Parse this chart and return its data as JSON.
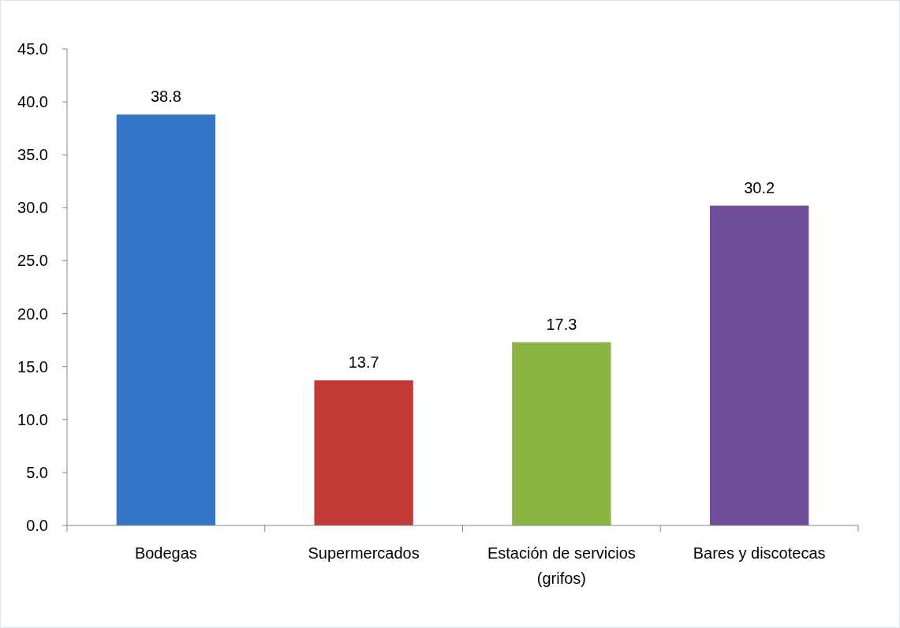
{
  "chart_data": {
    "type": "bar",
    "categories": [
      "Bodegas",
      "Supermercados",
      "Estación de servicios (grifos)",
      "Bares y discotecas"
    ],
    "values": [
      38.8,
      13.7,
      17.3,
      30.2
    ],
    "colors": [
      "#3576c9",
      "#c23a36",
      "#8ab443",
      "#6f4f9a"
    ],
    "ylim": [
      0,
      45
    ],
    "yticks": [
      {
        "value": 0,
        "label": "0.0"
      },
      {
        "value": 5,
        "label": "5.0"
      },
      {
        "value": 10,
        "label": "10.0"
      },
      {
        "value": 15,
        "label": "15.0"
      },
      {
        "value": 20,
        "label": "20.0"
      },
      {
        "value": 25,
        "label": "25.0"
      },
      {
        "value": 30,
        "label": "30.0"
      },
      {
        "value": 35,
        "label": "35.0"
      },
      {
        "value": 40,
        "label": "40.0"
      },
      {
        "value": 45,
        "label": "45.0"
      }
    ],
    "data_labels": true
  }
}
